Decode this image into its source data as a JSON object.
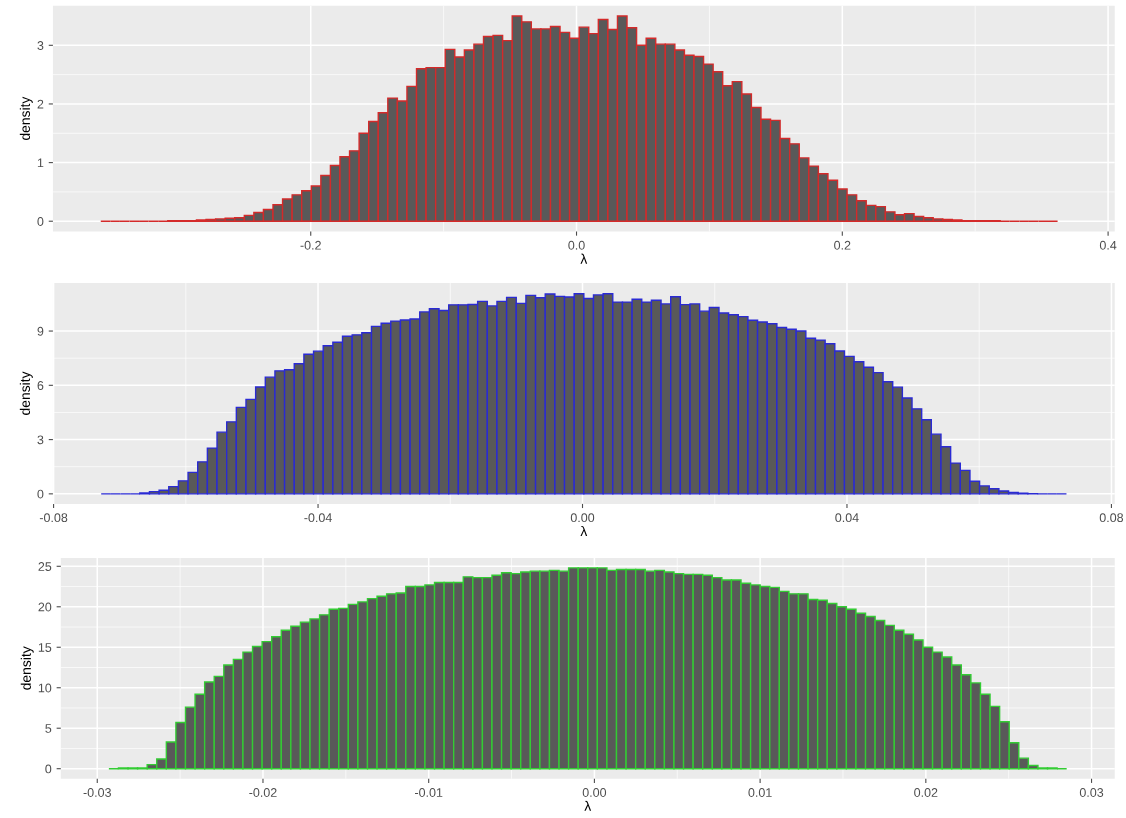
{
  "chart_data": [
    {
      "type": "histogram",
      "xlabel": "λ",
      "ylabel": "density",
      "color": "#d42a2a",
      "grid": true,
      "bins": [
        -0.358,
        -0.3508,
        -0.3436,
        -0.3364,
        -0.3292,
        -0.322,
        -0.3148,
        -0.3076,
        -0.3004,
        -0.2932,
        -0.286,
        -0.2788,
        -0.2716,
        -0.2644,
        -0.2572,
        -0.25,
        -0.2428,
        -0.2356,
        -0.2284,
        -0.2212,
        -0.214,
        -0.2068,
        -0.1996,
        -0.1924,
        -0.1852,
        -0.178,
        -0.1708,
        -0.1636,
        -0.1564,
        -0.1492,
        -0.142,
        -0.1348,
        -0.1276,
        -0.1204,
        -0.1132,
        -0.106,
        -0.0988,
        -0.0916,
        -0.0844,
        -0.0772,
        -0.07,
        -0.0628,
        -0.0556,
        -0.0484,
        -0.0412,
        -0.034,
        -0.0268,
        -0.0196,
        -0.0124,
        -0.0052,
        0.002,
        0.0092,
        0.0164,
        0.0236,
        0.0308,
        0.038,
        0.0452,
        0.0524,
        0.0596,
        0.0668,
        0.074,
        0.0812,
        0.0884,
        0.0956,
        0.1028,
        0.11,
        0.1172,
        0.1244,
        0.1316,
        0.1388,
        0.146,
        0.1532,
        0.1604,
        0.1676,
        0.1748,
        0.182,
        0.1892,
        0.1964,
        0.2036,
        0.2108,
        0.218,
        0.2252,
        0.2324,
        0.2396,
        0.2468,
        0.254,
        0.2612,
        0.2684,
        0.2756,
        0.2828,
        0.29,
        0.2972,
        0.3044,
        0.3116,
        0.3188,
        0.326,
        0.3332,
        0.3404,
        0.3476,
        0.3548,
        0.362
      ],
      "values": [
        0,
        0,
        0,
        0,
        0,
        0,
        0,
        0.01,
        0.01,
        0.01,
        0.02,
        0.03,
        0.04,
        0.05,
        0.06,
        0.1,
        0.15,
        0.2,
        0.28,
        0.38,
        0.45,
        0.52,
        0.6,
        0.78,
        0.95,
        1.1,
        1.2,
        1.5,
        1.7,
        1.85,
        2.1,
        2.05,
        2.3,
        2.6,
        2.62,
        2.62,
        2.93,
        2.8,
        2.92,
        3.02,
        3.15,
        3.17,
        3.08,
        3.5,
        3.4,
        3.28,
        3.28,
        3.32,
        3.22,
        3.12,
        3.31,
        3.2,
        3.44,
        3.27,
        3.5,
        3.3,
        3.0,
        3.12,
        3.02,
        3.02,
        2.92,
        2.83,
        2.81,
        2.68,
        2.55,
        2.31,
        2.38,
        2.17,
        1.94,
        1.74,
        1.72,
        1.41,
        1.32,
        1.08,
        0.94,
        0.81,
        0.7,
        0.55,
        0.45,
        0.35,
        0.27,
        0.25,
        0.16,
        0.11,
        0.13,
        0.08,
        0.06,
        0.04,
        0.03,
        0.02,
        0.01,
        0.01,
        0.01,
        0.01,
        0,
        0,
        0,
        0,
        0,
        0
      ],
      "xlim": [
        -0.394,
        0.405
      ],
      "ylim": [
        -0.175,
        3.675
      ],
      "xticks": [
        {
          "value": -0.2,
          "label": "-0.2"
        },
        {
          "value": 0,
          "label": "0.0"
        },
        {
          "value": 0.2,
          "label": "0.2"
        },
        {
          "value": 0.4,
          "label": "0.4"
        }
      ],
      "yticks": [
        0,
        1,
        2,
        3
      ]
    },
    {
      "type": "histogram",
      "xlabel": "λ",
      "ylabel": "density",
      "color": "#2a2ad4",
      "grid": true,
      "bins": [
        -0.0728,
        -0.07134,
        -0.06988,
        -0.06842,
        -0.06696,
        -0.0655,
        -0.06404,
        -0.06258,
        -0.06112,
        -0.05966,
        -0.0582,
        -0.05674,
        -0.05528,
        -0.05382,
        -0.05236,
        -0.0509,
        -0.04944,
        -0.04798,
        -0.04652,
        -0.04506,
        -0.0436,
        -0.04214,
        -0.04068,
        -0.03922,
        -0.03776,
        -0.0363,
        -0.03484,
        -0.03338,
        -0.03192,
        -0.03046,
        -0.029,
        -0.02754,
        -0.02608,
        -0.02462,
        -0.02316,
        -0.0217,
        -0.02024,
        -0.01878,
        -0.01732,
        -0.01586,
        -0.0144,
        -0.01294,
        -0.01148,
        -0.01002,
        -0.00856,
        -0.0071,
        -0.00564,
        -0.00418,
        -0.00272,
        -0.00126,
        0.0002,
        0.00166,
        0.00312,
        0.00458,
        0.00604,
        0.0075,
        0.00896,
        0.01042,
        0.01188,
        0.01334,
        0.0148,
        0.01626,
        0.01772,
        0.01918,
        0.02064,
        0.0221,
        0.02356,
        0.02502,
        0.02648,
        0.02794,
        0.0294,
        0.03086,
        0.03232,
        0.03378,
        0.03524,
        0.0367,
        0.03816,
        0.03962,
        0.04108,
        0.04254,
        0.044,
        0.04546,
        0.04692,
        0.04838,
        0.04984,
        0.0513,
        0.05276,
        0.05422,
        0.05568,
        0.05714,
        0.0586,
        0.06006,
        0.06152,
        0.06298,
        0.06444,
        0.0659,
        0.06736,
        0.06882,
        0.07028,
        0.07174,
        0.0732
      ],
      "values": [
        0,
        0,
        0,
        0,
        0.05,
        0.12,
        0.2,
        0.4,
        0.72,
        1.19,
        1.77,
        2.53,
        3.41,
        3.98,
        4.78,
        5.22,
        5.91,
        6.45,
        6.8,
        6.86,
        7.19,
        7.72,
        7.89,
        8.19,
        8.38,
        8.71,
        8.79,
        8.91,
        9.26,
        9.43,
        9.55,
        9.61,
        9.67,
        10.06,
        10.23,
        10.14,
        10.45,
        10.45,
        10.47,
        10.64,
        10.39,
        10.64,
        10.86,
        10.53,
        10.97,
        10.84,
        11.05,
        10.92,
        10.88,
        11.06,
        10.8,
        11.0,
        11.06,
        10.6,
        10.6,
        10.76,
        10.6,
        10.7,
        10.5,
        10.9,
        10.46,
        10.5,
        10.1,
        10.3,
        10.0,
        9.9,
        9.8,
        9.6,
        9.5,
        9.4,
        9.2,
        9.1,
        9.0,
        8.6,
        8.5,
        8.3,
        7.9,
        7.6,
        7.3,
        7.0,
        6.7,
        6.2,
        5.9,
        5.3,
        4.7,
        4.1,
        3.3,
        2.6,
        1.7,
        1.3,
        0.7,
        0.44,
        0.28,
        0.16,
        0.08,
        0.03,
        0.01,
        0,
        0,
        0
      ],
      "xlim": [
        -0.0801,
        0.0805
      ],
      "ylim": [
        -0.555,
        11.655
      ],
      "xticks": [
        {
          "value": -0.08,
          "label": "-0.08"
        },
        {
          "value": -0.04,
          "label": "-0.04"
        },
        {
          "value": 0,
          "label": "0.00"
        },
        {
          "value": 0.04,
          "label": "0.04"
        },
        {
          "value": 0.08,
          "label": "0.08"
        }
      ],
      "yticks": [
        0,
        3,
        6,
        9
      ]
    },
    {
      "type": "histogram",
      "xlabel": "λ",
      "ylabel": "density",
      "color": "#33cc33",
      "grid": true,
      "bins": [
        -0.0293,
        -0.028722,
        -0.028144,
        -0.027566,
        -0.026988,
        -0.02641,
        -0.025832,
        -0.025254,
        -0.024676,
        -0.024098,
        -0.02352,
        -0.022942,
        -0.022364,
        -0.021786,
        -0.021208,
        -0.02063,
        -0.020052,
        -0.019474,
        -0.018896,
        -0.018318,
        -0.01774,
        -0.017162,
        -0.016584,
        -0.016006,
        -0.015428,
        -0.01485,
        -0.014272,
        -0.013694,
        -0.013116,
        -0.012538,
        -0.01196,
        -0.011382,
        -0.010804,
        -0.010226,
        -0.009648,
        -0.00907,
        -0.008492,
        -0.007914,
        -0.007336,
        -0.006758,
        -0.00618,
        -0.005602,
        -0.005024,
        -0.004446,
        -0.003868,
        -0.00329,
        -0.002712,
        -0.002134,
        -0.001556,
        -0.000978,
        -0.0004,
        0.000178,
        0.000756,
        0.001334,
        0.001912,
        0.00249,
        0.003068,
        0.003646,
        0.004224,
        0.004802,
        0.00538,
        0.005958,
        0.006536,
        0.007114,
        0.007692,
        0.00827,
        0.008848,
        0.009426,
        0.010004,
        0.010582,
        0.01116,
        0.011738,
        0.012316,
        0.012894,
        0.013472,
        0.01405,
        0.014628,
        0.015206,
        0.015784,
        0.016362,
        0.01694,
        0.017518,
        0.018096,
        0.018674,
        0.019252,
        0.01983,
        0.020408,
        0.020986,
        0.021564,
        0.022142,
        0.02272,
        0.023298,
        0.023876,
        0.024454,
        0.025032,
        0.02561,
        0.026188,
        0.026766,
        0.027344,
        0.027922,
        0.0285
      ],
      "values": [
        0,
        0.1,
        0.1,
        0.1,
        0.5,
        1.2,
        3.3,
        5.7,
        7.6,
        9.2,
        10.7,
        11.4,
        12.8,
        13.5,
        14.4,
        15.1,
        15.7,
        16.3,
        17.1,
        17.6,
        18.1,
        18.5,
        19.0,
        19.7,
        19.8,
        20.3,
        20.6,
        21.0,
        21.3,
        21.6,
        21.7,
        22.5,
        22.5,
        22.7,
        23.0,
        23.0,
        23.0,
        23.7,
        23.6,
        23.6,
        23.9,
        24.2,
        24.1,
        24.3,
        24.4,
        24.4,
        24.5,
        24.4,
        24.8,
        24.8,
        24.8,
        24.8,
        24.5,
        24.6,
        24.6,
        24.6,
        24.4,
        24.5,
        24.3,
        24.1,
        24.0,
        24.0,
        23.9,
        23.6,
        23.3,
        23.3,
        22.9,
        22.7,
        22.5,
        22.4,
        21.9,
        21.6,
        21.6,
        20.9,
        20.8,
        20.4,
        20.0,
        19.7,
        19.2,
        18.8,
        18.3,
        17.7,
        17.1,
        16.6,
        15.9,
        15.0,
        14.4,
        13.8,
        12.8,
        11.6,
        10.6,
        9.2,
        7.7,
        5.8,
        3.2,
        1.3,
        0.4,
        0.1,
        0.1,
        0
      ],
      "xlim": [
        -0.0322,
        0.0314
      ],
      "ylim": [
        -1.24,
        26.04
      ],
      "xticks": [
        {
          "value": -0.03,
          "label": "-0.03"
        },
        {
          "value": -0.02,
          "label": "-0.02"
        },
        {
          "value": -0.01,
          "label": "-0.01"
        },
        {
          "value": 0,
          "label": "0.00"
        },
        {
          "value": 0.01,
          "label": "0.01"
        },
        {
          "value": 0.02,
          "label": "0.02"
        },
        {
          "value": 0.03,
          "label": "0.03"
        }
      ],
      "yticks": [
        0,
        5,
        10,
        15,
        20,
        25
      ]
    }
  ]
}
